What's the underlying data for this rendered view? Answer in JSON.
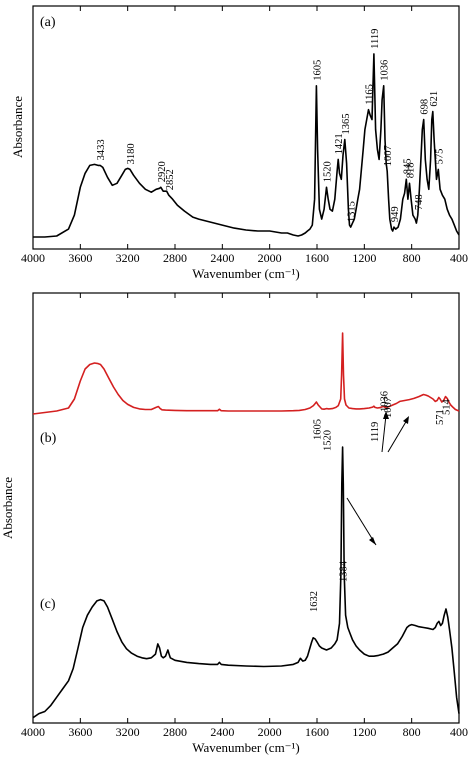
{
  "chart_data": [
    {
      "type": "line",
      "panel": "(a)",
      "xlabel": "Wavenumber (cm⁻¹)",
      "ylabel": "Absorbance",
      "xlim": [
        4000,
        400
      ],
      "x_reversed": true,
      "ylim": [
        0,
        1
      ],
      "x_ticks": [
        "4000",
        "3600",
        "3200",
        "2800",
        "2400",
        "2000",
        "1600",
        "1200",
        "800",
        "400"
      ],
      "series": [
        {
          "color": "#000000",
          "x": [
            4000,
            3900,
            3800,
            3700,
            3650,
            3600,
            3560,
            3520,
            3480,
            3450,
            3433,
            3410,
            3370,
            3330,
            3290,
            3250,
            3220,
            3200,
            3180,
            3150,
            3100,
            3050,
            3000,
            2960,
            2930,
            2920,
            2900,
            2870,
            2852,
            2820,
            2780,
            2720,
            2650,
            2600,
            2500,
            2400,
            2300,
            2200,
            2100,
            2000,
            1950,
            1900,
            1850,
            1800,
            1760,
            1730,
            1700,
            1680,
            1660,
            1640,
            1620,
            1605,
            1595,
            1580,
            1560,
            1540,
            1520,
            1505,
            1490,
            1470,
            1450,
            1430,
            1421,
            1410,
            1395,
            1380,
            1365,
            1350,
            1335,
            1325,
            1315,
            1300,
            1285,
            1270,
            1255,
            1240,
            1225,
            1210,
            1195,
            1180,
            1165,
            1150,
            1135,
            1119,
            1105,
            1090,
            1075,
            1060,
            1050,
            1036,
            1025,
            1015,
            1007,
            995,
            985,
            970,
            960,
            949,
            935,
            915,
            895,
            875,
            860,
            845,
            832,
            818,
            805,
            790,
            770,
            760,
            748,
            735,
            720,
            710,
            698,
            685,
            670,
            655,
            640,
            630,
            621,
            610,
            600,
            590,
            575,
            560,
            540,
            520,
            500,
            480,
            460,
            440,
            420,
            400
          ],
          "y": [
            0.01,
            0.01,
            0.015,
            0.05,
            0.12,
            0.26,
            0.33,
            0.37,
            0.375,
            0.37,
            0.37,
            0.36,
            0.31,
            0.27,
            0.28,
            0.32,
            0.35,
            0.355,
            0.35,
            0.32,
            0.28,
            0.25,
            0.235,
            0.25,
            0.255,
            0.26,
            0.24,
            0.24,
            0.22,
            0.2,
            0.17,
            0.14,
            0.11,
            0.1,
            0.085,
            0.07,
            0.055,
            0.045,
            0.04,
            0.04,
            0.035,
            0.03,
            0.03,
            0.02,
            0.015,
            0.02,
            0.03,
            0.04,
            0.05,
            0.07,
            0.2,
            0.77,
            0.45,
            0.15,
            0.1,
            0.15,
            0.26,
            0.2,
            0.15,
            0.14,
            0.2,
            0.34,
            0.4,
            0.33,
            0.3,
            0.42,
            0.5,
            0.38,
            0.15,
            0.07,
            0.06,
            0.08,
            0.1,
            0.15,
            0.2,
            0.25,
            0.35,
            0.45,
            0.55,
            0.6,
            0.65,
            0.62,
            0.6,
            0.93,
            0.55,
            0.45,
            0.4,
            0.55,
            0.7,
            0.77,
            0.5,
            0.38,
            0.34,
            0.2,
            0.1,
            0.05,
            0.04,
            0.06,
            0.05,
            0.06,
            0.1,
            0.2,
            0.23,
            0.3,
            0.2,
            0.28,
            0.2,
            0.12,
            0.1,
            0.08,
            0.12,
            0.25,
            0.42,
            0.55,
            0.6,
            0.4,
            0.3,
            0.25,
            0.4,
            0.6,
            0.64,
            0.5,
            0.4,
            0.3,
            0.35,
            0.25,
            0.22,
            0.2,
            0.15,
            0.12,
            0.1,
            0.07,
            0.04,
            0.02
          ]
        }
      ],
      "annotations": [
        {
          "text": "3433",
          "x": 3433,
          "y": 0.37
        },
        {
          "text": "3180",
          "x": 3180,
          "y": 0.35
        },
        {
          "text": "2920",
          "x": 2920,
          "y": 0.26
        },
        {
          "text": "2852",
          "x": 2852,
          "y": 0.22
        },
        {
          "text": "1605",
          "x": 1605,
          "y": 0.77
        },
        {
          "text": "1520",
          "x": 1520,
          "y": 0.26
        },
        {
          "text": "1421",
          "x": 1421,
          "y": 0.4
        },
        {
          "text": "1365",
          "x": 1365,
          "y": 0.5
        },
        {
          "text": "1315",
          "x": 1315,
          "y": 0.06
        },
        {
          "text": "1165",
          "x": 1165,
          "y": 0.65
        },
        {
          "text": "1119",
          "x": 1119,
          "y": 0.93
        },
        {
          "text": "1036",
          "x": 1036,
          "y": 0.77
        },
        {
          "text": "1007",
          "x": 1007,
          "y": 0.34
        },
        {
          "text": "949",
          "x": 949,
          "y": 0.06
        },
        {
          "text": "845",
          "x": 845,
          "y": 0.3
        },
        {
          "text": "818",
          "x": 818,
          "y": 0.28
        },
        {
          "text": "748",
          "x": 748,
          "y": 0.12
        },
        {
          "text": "698",
          "x": 698,
          "y": 0.6
        },
        {
          "text": "621",
          "x": 621,
          "y": 0.64
        },
        {
          "text": "575",
          "x": 575,
          "y": 0.35
        }
      ]
    },
    {
      "type": "line",
      "panel": "(b) and (c)",
      "xlabel": "Wavenumber (cm⁻¹)",
      "ylabel": "Absorbance",
      "xlim": [
        4000,
        400
      ],
      "x_reversed": true,
      "ylim": [
        0,
        1
      ],
      "x_ticks": [
        "4000",
        "3600",
        "3200",
        "2800",
        "2400",
        "2000",
        "1600",
        "1200",
        "800",
        "400"
      ],
      "series": [
        {
          "label": "(b)",
          "color": "#d42020",
          "x": [
            4000,
            3900,
            3800,
            3700,
            3650,
            3600,
            3560,
            3520,
            3480,
            3450,
            3430,
            3400,
            3360,
            3320,
            3280,
            3240,
            3200,
            3150,
            3100,
            3050,
            3000,
            2960,
            2940,
            2925,
            2910,
            2880,
            2800,
            2700,
            2600,
            2500,
            2440,
            2425,
            2410,
            2350,
            2200,
            2000,
            1900,
            1800,
            1750,
            1700,
            1660,
            1630,
            1615,
            1605,
            1590,
            1560,
            1540,
            1520,
            1500,
            1470,
            1440,
            1420,
            1400,
            1392,
            1384,
            1376,
            1368,
            1355,
            1330,
            1300,
            1270,
            1240,
            1200,
            1160,
            1130,
            1119,
            1110,
            1090,
            1070,
            1050,
            1036,
            1025,
            1007,
            990,
            960,
            930,
            900,
            860,
            820,
            780,
            740,
            700,
            680,
            660,
            640,
            620,
            600,
            585,
            571,
            560,
            545,
            530,
            514,
            500,
            485,
            470,
            450,
            430,
            400
          ],
          "y": [
            0.72,
            0.725,
            0.73,
            0.74,
            0.77,
            0.83,
            0.87,
            0.885,
            0.89,
            0.888,
            0.885,
            0.87,
            0.84,
            0.81,
            0.785,
            0.765,
            0.752,
            0.742,
            0.737,
            0.735,
            0.735,
            0.742,
            0.745,
            0.738,
            0.734,
            0.733,
            0.732,
            0.731,
            0.731,
            0.731,
            0.731,
            0.736,
            0.731,
            0.73,
            0.73,
            0.73,
            0.73,
            0.731,
            0.732,
            0.735,
            0.74,
            0.748,
            0.755,
            0.76,
            0.75,
            0.737,
            0.736,
            0.738,
            0.737,
            0.738,
            0.742,
            0.748,
            0.77,
            0.85,
            0.99,
            0.85,
            0.77,
            0.75,
            0.74,
            0.738,
            0.737,
            0.737,
            0.738,
            0.74,
            0.743,
            0.746,
            0.742,
            0.74,
            0.741,
            0.744,
            0.745,
            0.742,
            0.743,
            0.745,
            0.75,
            0.755,
            0.762,
            0.765,
            0.768,
            0.772,
            0.778,
            0.785,
            0.783,
            0.78,
            0.775,
            0.77,
            0.762,
            0.765,
            0.775,
            0.77,
            0.76,
            0.765,
            0.778,
            0.772,
            0.76,
            0.75,
            0.742,
            0.735,
            0.73
          ]
        },
        {
          "label": "(c)",
          "color": "#000000",
          "x": [
            4000,
            3950,
            3900,
            3850,
            3800,
            3750,
            3700,
            3660,
            3620,
            3580,
            3540,
            3500,
            3460,
            3430,
            3400,
            3370,
            3330,
            3290,
            3250,
            3210,
            3170,
            3120,
            3080,
            3040,
            3000,
            2965,
            2945,
            2930,
            2915,
            2900,
            2880,
            2860,
            2850,
            2840,
            2800,
            2700,
            2600,
            2500,
            2440,
            2425,
            2410,
            2350,
            2200,
            2050,
            1900,
            1800,
            1760,
            1740,
            1720,
            1700,
            1680,
            1660,
            1645,
            1632,
            1615,
            1600,
            1580,
            1560,
            1520,
            1480,
            1450,
            1430,
            1410,
            1398,
            1390,
            1384,
            1378,
            1370,
            1358,
            1340,
            1320,
            1300,
            1270,
            1240,
            1200,
            1160,
            1120,
            1080,
            1040,
            1000,
            960,
            920,
            880,
            840,
            820,
            800,
            770,
            740,
            700,
            660,
            620,
            600,
            585,
            570,
            555,
            540,
            525,
            510,
            495,
            480,
            460,
            440,
            420,
            400
          ],
          "y": [
            0.03,
            0.04,
            0.045,
            0.06,
            0.08,
            0.1,
            0.12,
            0.15,
            0.2,
            0.25,
            0.28,
            0.3,
            0.315,
            0.318,
            0.315,
            0.3,
            0.27,
            0.24,
            0.215,
            0.198,
            0.188,
            0.18,
            0.176,
            0.174,
            0.176,
            0.185,
            0.21,
            0.2,
            0.18,
            0.176,
            0.18,
            0.195,
            0.185,
            0.176,
            0.17,
            0.165,
            0.162,
            0.16,
            0.16,
            0.165,
            0.16,
            0.158,
            0.156,
            0.155,
            0.156,
            0.16,
            0.165,
            0.175,
            0.168,
            0.17,
            0.18,
            0.2,
            0.215,
            0.225,
            0.222,
            0.215,
            0.205,
            0.2,
            0.195,
            0.2,
            0.21,
            0.22,
            0.26,
            0.38,
            0.6,
            0.69,
            0.6,
            0.38,
            0.28,
            0.25,
            0.235,
            0.22,
            0.205,
            0.195,
            0.185,
            0.18,
            0.18,
            0.182,
            0.185,
            0.19,
            0.2,
            0.21,
            0.228,
            0.25,
            0.255,
            0.257,
            0.255,
            0.252,
            0.25,
            0.248,
            0.245,
            0.25,
            0.26,
            0.265,
            0.255,
            0.26,
            0.28,
            0.295,
            0.275,
            0.245,
            0.2,
            0.14,
            0.08,
            0.04
          ]
        }
      ],
      "annotations": [
        {
          "text": "(b)",
          "kind": "series-label"
        },
        {
          "text": "(c)",
          "kind": "series-label"
        },
        {
          "text": "1605",
          "x": 1605
        },
        {
          "text": "1520",
          "x": 1520
        },
        {
          "text": "1119",
          "x": 1119
        },
        {
          "text": "1036",
          "x": 1036
        },
        {
          "text": "1007",
          "x": 1007
        },
        {
          "text": "571",
          "x": 571
        },
        {
          "text": "514",
          "x": 514
        },
        {
          "text": "1632",
          "x": 1632
        },
        {
          "text": "1384",
          "x": 1384
        }
      ]
    }
  ],
  "panels": {
    "top": {
      "label": "(a)"
    },
    "bottom": {
      "label_b": "(b)",
      "label_c": "(c)"
    }
  }
}
